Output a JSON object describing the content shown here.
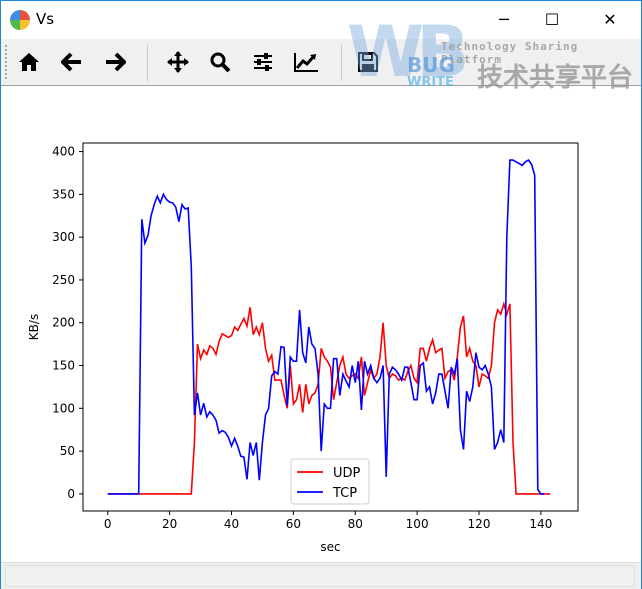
{
  "window": {
    "title": "Vs",
    "minimize": "─",
    "maximize": "☐",
    "close": "✕"
  },
  "toolbar": {
    "buttons": [
      {
        "name": "home-icon",
        "tooltip": "Home"
      },
      {
        "name": "back-icon",
        "tooltip": "Back"
      },
      {
        "name": "forward-icon",
        "tooltip": "Forward"
      },
      {
        "name": "pan-icon",
        "tooltip": "Pan"
      },
      {
        "name": "zoom-icon",
        "tooltip": "Zoom"
      },
      {
        "name": "subplots-icon",
        "tooltip": "Subplots"
      },
      {
        "name": "customize-icon",
        "tooltip": "Customize"
      },
      {
        "name": "save-icon",
        "tooltip": "Save"
      }
    ]
  },
  "watermark": {
    "logo": "WB",
    "bug": "BUG",
    "write": "WRITE",
    "english": "Technology Sharing Platform",
    "chinese": "技术共享平台"
  },
  "chart_data": {
    "type": "line",
    "xlabel": "sec",
    "ylabel": "KB/s",
    "xlim": [
      -8,
      152
    ],
    "ylim": [
      -20,
      410
    ],
    "xticks": [
      0,
      20,
      40,
      60,
      80,
      100,
      120,
      140
    ],
    "yticks": [
      0,
      50,
      100,
      150,
      200,
      250,
      300,
      350,
      400
    ],
    "grid": false,
    "legend": "lower-center",
    "series": [
      {
        "name": "UDP",
        "color": "#ff0000",
        "x_start": 0,
        "x_step": 1,
        "values": [
          0,
          0,
          0,
          0,
          0,
          0,
          0,
          0,
          0,
          0,
          0,
          0,
          0,
          0,
          0,
          0,
          0,
          0,
          0,
          0,
          0,
          0,
          0,
          0,
          0,
          0,
          0,
          0,
          60,
          175,
          158,
          168,
          163,
          173,
          170,
          163,
          178,
          187,
          185,
          183,
          185,
          195,
          191,
          198,
          205,
          196,
          218,
          186,
          195,
          186,
          200,
          170,
          155,
          162,
          133,
          133,
          133,
          115,
          100,
          150,
          105,
          110,
          128,
          95,
          128,
          105,
          115,
          118,
          128,
          170,
          160,
          155,
          148,
          110,
          130,
          150,
          160,
          140,
          135,
          138,
          140,
          135,
          160,
          115,
          130,
          145,
          135,
          140,
          160,
          200,
          150,
          135,
          140,
          138,
          133,
          135,
          133,
          143,
          150,
          135,
          130,
          170,
          170,
          155,
          170,
          180,
          165,
          168,
          170,
          135,
          143,
          145,
          133,
          160,
          195,
          208,
          160,
          170,
          155,
          150,
          125,
          140,
          138,
          135,
          150,
          200,
          215,
          210,
          222,
          210,
          222,
          60,
          0,
          0,
          0,
          0,
          0,
          0,
          0,
          0,
          0,
          0,
          0,
          0
        ]
      },
      {
        "name": "TCP",
        "color": "#0000ff",
        "x_start": 0,
        "x_step": 1,
        "values": [
          0,
          0,
          0,
          0,
          0,
          0,
          0,
          0,
          0,
          0,
          0,
          321,
          293,
          302,
          325,
          338,
          348,
          340,
          350,
          344,
          341,
          340,
          335,
          318,
          338,
          333,
          334,
          265,
          92,
          118,
          92,
          106,
          90,
          96,
          92,
          86,
          71,
          74,
          72,
          66,
          56,
          65,
          56,
          44,
          43,
          17,
          60,
          45,
          60,
          16,
          60,
          92,
          100,
          138,
          143,
          140,
          172,
          171,
          103,
          160,
          155,
          155,
          215,
          165,
          153,
          195,
          175,
          170,
          140,
          50,
          105,
          100,
          100,
          158,
          158,
          115,
          140,
          132,
          125,
          150,
          130,
          155,
          98,
          155,
          140,
          150,
          135,
          130,
          135,
          150,
          20,
          140,
          148,
          145,
          140,
          133,
          148,
          148,
          130,
          110,
          110,
          150,
          153,
          120,
          125,
          105,
          118,
          140,
          140,
          120,
          100,
          148,
          140,
          158,
          75,
          52,
          120,
          108,
          125,
          165,
          148,
          145,
          150,
          140,
          125,
          52,
          60,
          75,
          60,
          300,
          390,
          390,
          388,
          386,
          384,
          388,
          390,
          385,
          372,
          5,
          0,
          0
        ]
      }
    ]
  }
}
